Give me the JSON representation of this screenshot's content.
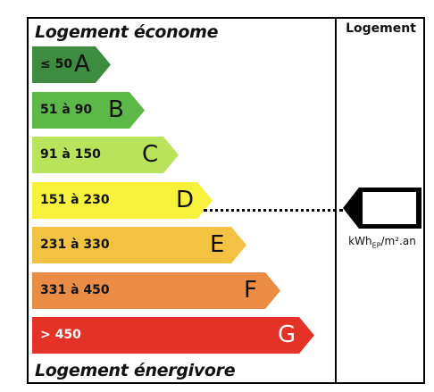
{
  "header": {
    "top_label": "Logement économe",
    "bottom_label": "Logement énergivore",
    "column_header": "Logement"
  },
  "classes": [
    {
      "range": "≤ 50",
      "letter": "A",
      "color": "#3d8c3f",
      "text_color": "#111111"
    },
    {
      "range": "51 à 90",
      "letter": "B",
      "color": "#5cb847",
      "text_color": "#111111"
    },
    {
      "range": "91 à 150",
      "letter": "C",
      "color": "#b9e35a",
      "text_color": "#111111"
    },
    {
      "range": "151 à 230",
      "letter": "D",
      "color": "#f6f23b",
      "text_color": "#111111"
    },
    {
      "range": "231 à 330",
      "letter": "E",
      "color": "#f3c243",
      "text_color": "#111111"
    },
    {
      "range": "331 à 450",
      "letter": "F",
      "color": "#ea8c44",
      "text_color": "#111111"
    },
    {
      "range": "> 450",
      "letter": "G",
      "color": "#e43326",
      "text_color": "#ffffff"
    }
  ],
  "current_class": "D",
  "unit": {
    "base": "kWh",
    "subscript": "EP",
    "suffix": "/m².an"
  },
  "marker_value": ""
}
